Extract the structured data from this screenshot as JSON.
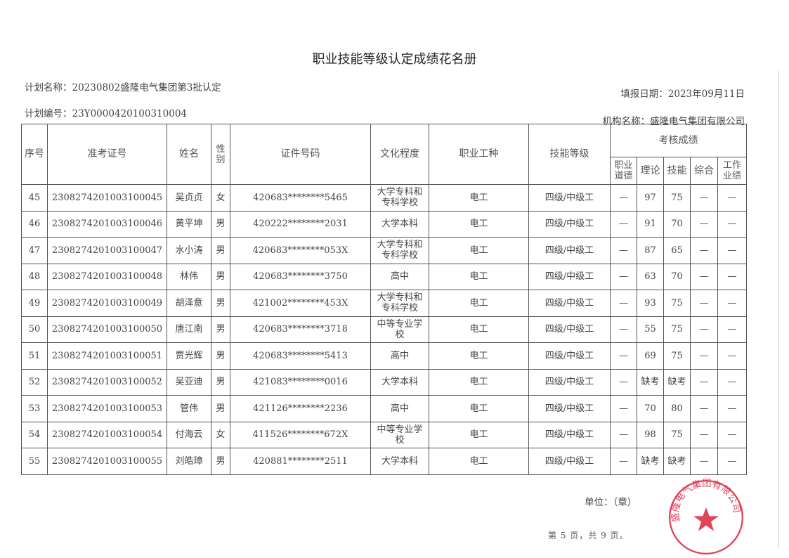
{
  "document": {
    "title": "职业技能等级认定成绩花名册",
    "plan_name": "计划名称：20230802盛隆电气集团第3批认定",
    "plan_number": "计划编号：23Y0000420100310004",
    "fill_date": "填报日期：2023年09月11日",
    "org_name": "机构名称：盛隆电气集团有限公司",
    "seal_label": "单位：（章）",
    "page_info": "第 5 页，共 9 页。",
    "stamp_text": "盛隆电气集团有限公司",
    "stamp_color": "#e0455a"
  },
  "table": {
    "headers": {
      "seq": "序号",
      "exam_id": "准考证号",
      "name": "姓名",
      "gender": "性别",
      "id_number": "证件号码",
      "education": "文化程度",
      "occupation": "职业工种",
      "skill_level": "技能等级",
      "scores": "考核成绩",
      "ethics": "职业道德",
      "theory": "理论",
      "skill": "技能",
      "overall": "综合",
      "work": "工作业绩"
    },
    "rows": [
      {
        "seq": "45",
        "exam_id": "2308274201003100045",
        "name": "吴贞贞",
        "gender": "女",
        "id_number": "420683********5465",
        "education": "大学专科和专科学校",
        "occupation": "电工",
        "skill_level": "四级/中级工",
        "ethics": "—",
        "theory": "97",
        "skill": "75",
        "overall": "—",
        "work": "—"
      },
      {
        "seq": "46",
        "exam_id": "2308274201003100046",
        "name": "黄平坤",
        "gender": "男",
        "id_number": "420222********2031",
        "education": "大学本科",
        "occupation": "电工",
        "skill_level": "四级/中级工",
        "ethics": "—",
        "theory": "91",
        "skill": "70",
        "overall": "—",
        "work": "—"
      },
      {
        "seq": "47",
        "exam_id": "2308274201003100047",
        "name": "水小涛",
        "gender": "男",
        "id_number": "420683********053X",
        "education": "大学专科和专科学校",
        "occupation": "电工",
        "skill_level": "四级/中级工",
        "ethics": "—",
        "theory": "87",
        "skill": "65",
        "overall": "—",
        "work": "—"
      },
      {
        "seq": "48",
        "exam_id": "2308274201003100048",
        "name": "林伟",
        "gender": "男",
        "id_number": "420683********3750",
        "education": "高中",
        "occupation": "电工",
        "skill_level": "四级/中级工",
        "ethics": "—",
        "theory": "63",
        "skill": "70",
        "overall": "—",
        "work": "—"
      },
      {
        "seq": "49",
        "exam_id": "2308274201003100049",
        "name": "胡泽意",
        "gender": "男",
        "id_number": "421002********453X",
        "education": "大学专科和专科学校",
        "occupation": "电工",
        "skill_level": "四级/中级工",
        "ethics": "—",
        "theory": "93",
        "skill": "75",
        "overall": "—",
        "work": "—"
      },
      {
        "seq": "50",
        "exam_id": "2308274201003100050",
        "name": "唐江南",
        "gender": "男",
        "id_number": "420683********3718",
        "education": "中等专业学校",
        "occupation": "电工",
        "skill_level": "四级/中级工",
        "ethics": "—",
        "theory": "55",
        "skill": "75",
        "overall": "—",
        "work": "—"
      },
      {
        "seq": "51",
        "exam_id": "2308274201003100051",
        "name": "贾光辉",
        "gender": "男",
        "id_number": "420683********5413",
        "education": "高中",
        "occupation": "电工",
        "skill_level": "四级/中级工",
        "ethics": "—",
        "theory": "69",
        "skill": "75",
        "overall": "—",
        "work": "—"
      },
      {
        "seq": "52",
        "exam_id": "2308274201003100052",
        "name": "吴亚迪",
        "gender": "男",
        "id_number": "421083********0016",
        "education": "大学本科",
        "occupation": "电工",
        "skill_level": "四级/中级工",
        "ethics": "—",
        "theory": "缺考",
        "skill": "缺考",
        "overall": "—",
        "work": "—"
      },
      {
        "seq": "53",
        "exam_id": "2308274201003100053",
        "name": "管伟",
        "gender": "男",
        "id_number": "421126********2236",
        "education": "高中",
        "occupation": "电工",
        "skill_level": "四级/中级工",
        "ethics": "—",
        "theory": "70",
        "skill": "80",
        "overall": "—",
        "work": "—"
      },
      {
        "seq": "54",
        "exam_id": "2308274201003100054",
        "name": "付海云",
        "gender": "女",
        "id_number": "411526********672X",
        "education": "中等专业学校",
        "occupation": "电工",
        "skill_level": "四级/中级工",
        "ethics": "—",
        "theory": "98",
        "skill": "75",
        "overall": "—",
        "work": "—"
      },
      {
        "seq": "55",
        "exam_id": "2308274201003100055",
        "name": "刘皓璋",
        "gender": "男",
        "id_number": "420881********2511",
        "education": "大学本科",
        "occupation": "电工",
        "skill_level": "四级/中级工",
        "ethics": "—",
        "theory": "缺考",
        "skill": "缺考",
        "overall": "—",
        "work": "—"
      }
    ]
  }
}
